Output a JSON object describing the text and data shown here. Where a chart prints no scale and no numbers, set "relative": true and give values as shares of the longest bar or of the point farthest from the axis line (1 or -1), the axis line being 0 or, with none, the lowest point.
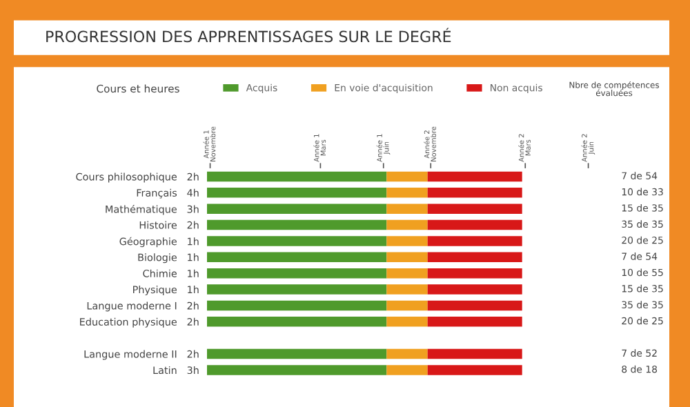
{
  "chart_data": {
    "type": "bar",
    "orientation": "horizontal",
    "stacked": true,
    "relative": true,
    "title": "PROGRESSION DES APPRENTISSAGES SUR LE DEGRÉ",
    "categories": [
      "Cours philosophique   2h",
      "Français   4h",
      "Mathématique   3h",
      "Histoire   2h",
      "Géographie   1h",
      "Biologie   1h",
      "Chimie   1h",
      "Physique   1h",
      "Langue moderne I   2h",
      "Education physique   2h",
      null,
      "Langue moderne II   2h",
      "Latin   3h"
    ],
    "series": [
      {
        "name": "Acquis",
        "color": "#4f9a2c",
        "values": [
          0.57,
          0.57,
          0.57,
          0.57,
          0.57,
          0.57,
          0.57,
          0.57,
          0.57,
          0.57,
          null,
          0.57,
          0.57
        ]
      },
      {
        "name": "En voie d'acquisition",
        "color": "#f0a020",
        "values": [
          0.13,
          0.13,
          0.13,
          0.13,
          0.13,
          0.13,
          0.13,
          0.13,
          0.13,
          0.13,
          null,
          0.13,
          0.13
        ]
      },
      {
        "name": "Non acquis",
        "color": "#d81818",
        "values": [
          0.3,
          0.3,
          0.3,
          0.3,
          0.3,
          0.3,
          0.3,
          0.3,
          0.3,
          0.3,
          null,
          0.3,
          0.3
        ]
      }
    ],
    "annotations": [
      "Cours et heures",
      "Nbre de compétences\névaluées",
      "Année 1\nNovembre",
      "Année 1\nMars",
      "Année 1\nJuin",
      "Année 2\nNovembre",
      "Année 2\nMars",
      "Année 2\nJuin",
      "7 de 54",
      "10 de 33",
      "15 de 35",
      "35 de 35",
      "20 de 25",
      "7 de 54",
      "10 de 55",
      "15 de 35",
      "35 de 35",
      "20 de 25",
      "7 de 52",
      "8 de 18"
    ],
    "legend": "top"
  }
}
